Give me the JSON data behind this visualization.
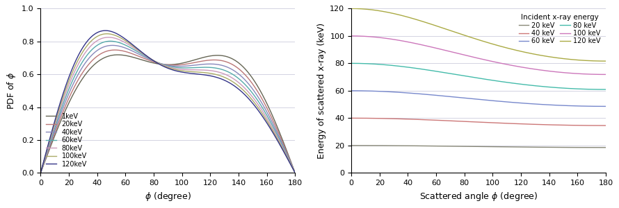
{
  "left_plot": {
    "xlabel": "$\\phi$ (degree)",
    "ylabel": "PDF of $\\phi$",
    "xlim": [
      0,
      180
    ],
    "ylim": [
      0.0,
      1.0
    ],
    "xticks": [
      0,
      20,
      40,
      60,
      80,
      100,
      120,
      140,
      160,
      180
    ],
    "yticks": [
      0.0,
      0.2,
      0.4,
      0.6,
      0.8,
      1.0
    ],
    "energies_keV": [
      1,
      20,
      40,
      60,
      80,
      100,
      120
    ],
    "colors": [
      "#666655",
      "#bb7777",
      "#8888bb",
      "#55aaaa",
      "#cc99bb",
      "#aaaa66",
      "#333388"
    ],
    "labels": [
      "1keV",
      "20keV",
      "40keV",
      "60keV",
      "80keV",
      "100keV",
      "120keV"
    ]
  },
  "right_plot": {
    "xlabel": "Scattered angle $\\phi$ (degree)",
    "ylabel": "Energy of scattered x-ray (keV)",
    "xlim": [
      0,
      180
    ],
    "ylim": [
      0,
      120
    ],
    "xticks": [
      0,
      20,
      40,
      60,
      80,
      100,
      120,
      140,
      160,
      180
    ],
    "yticks": [
      0,
      20,
      40,
      60,
      80,
      100,
      120
    ],
    "energies_keV": [
      20,
      40,
      60,
      80,
      100,
      120
    ],
    "colors": [
      "#888877",
      "#cc7777",
      "#7788cc",
      "#44bbaa",
      "#cc77bb",
      "#aaaa44"
    ],
    "labels": [
      "20 keV",
      "40 keV",
      "60 keV",
      "80 keV",
      "100 keV",
      "120 keV"
    ],
    "legend_title": "Incident x-ray energy",
    "legend_cols": 2
  },
  "background_color": "#ffffff",
  "grid_color": "#ccccdd",
  "line_width": 1.0
}
